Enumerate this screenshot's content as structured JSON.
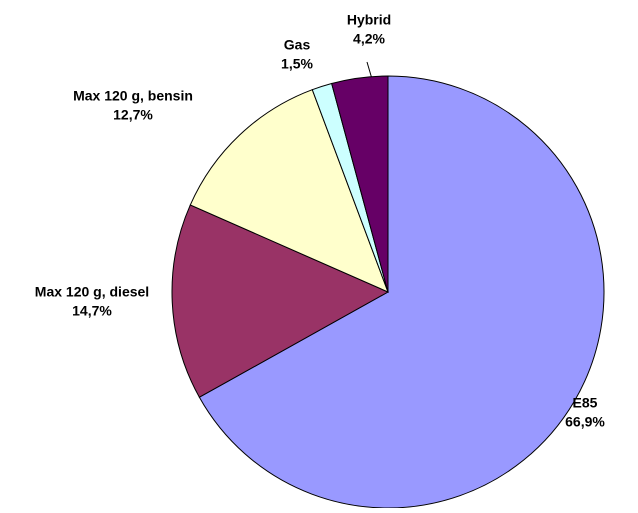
{
  "chart_data": {
    "type": "pie",
    "categories": [
      "E85",
      "Max 120 g, diesel",
      "Max 120 g, bensin",
      "Gas",
      "Hybrid"
    ],
    "values": [
      66.9,
      14.7,
      12.7,
      1.5,
      4.2
    ],
    "value_labels": [
      "66,9%",
      "14,7%",
      "12,7%",
      "1,5%",
      "4,2%"
    ],
    "colors": [
      "#9999ff",
      "#993366",
      "#ffffcc",
      "#ccffff",
      "#660066"
    ]
  }
}
